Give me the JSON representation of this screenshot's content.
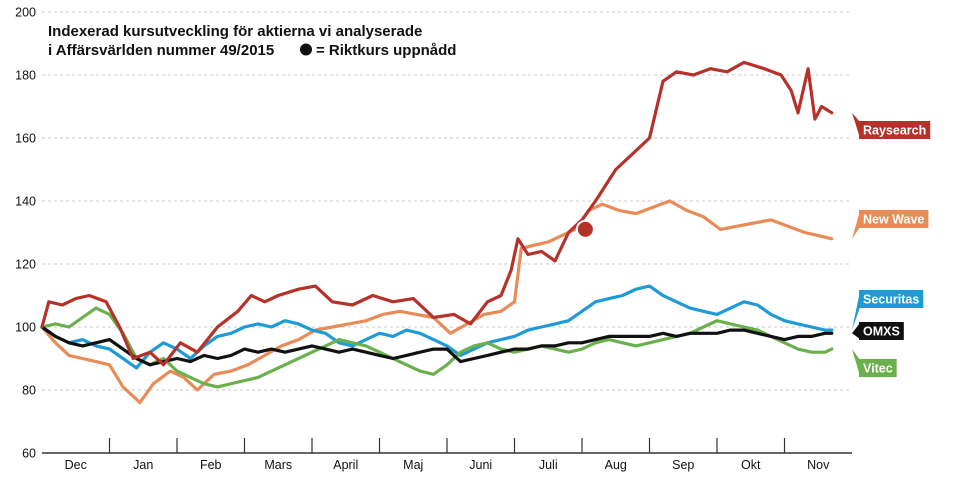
{
  "chart_data": {
    "type": "line",
    "title_lines": [
      "Indexerad kursutveckling för aktierna vi analyserade",
      "i Affärsvärlden nummer 49/2015"
    ],
    "legend_note": "= Riktkurs uppnådd",
    "ylim": [
      60,
      200
    ],
    "y_ticks": [
      60,
      80,
      100,
      120,
      140,
      160,
      180,
      200
    ],
    "grid": "horizontal-dashed",
    "months": [
      "Dec",
      "Jan",
      "Feb",
      "Mars",
      "April",
      "Maj",
      "Juni",
      "Juli",
      "Aug",
      "Sep",
      "Okt",
      "Nov"
    ],
    "x_range": [
      0,
      12
    ],
    "series": [
      {
        "name": "Raysearch",
        "color": "#b5322b",
        "x": [
          0,
          0.1,
          0.3,
          0.5,
          0.7,
          0.95,
          1.15,
          1.35,
          1.6,
          1.8,
          2.05,
          2.3,
          2.6,
          2.9,
          3.1,
          3.3,
          3.5,
          3.8,
          4.05,
          4.3,
          4.6,
          4.9,
          5.2,
          5.5,
          5.8,
          6.1,
          6.35,
          6.6,
          6.8,
          6.95,
          7.05,
          7.2,
          7.4,
          7.6,
          7.8,
          8.0,
          8.2,
          8.5,
          8.75,
          9.0,
          9.2,
          9.4,
          9.65,
          9.9,
          10.15,
          10.4,
          10.7,
          10.95,
          11.1,
          11.2,
          11.35,
          11.45,
          11.55,
          11.7
        ],
        "values": [
          100,
          108,
          107,
          109,
          110,
          108,
          100,
          90,
          92,
          88,
          95,
          92,
          100,
          105,
          110,
          108,
          110,
          112,
          113,
          108,
          107,
          110,
          108,
          109,
          103,
          104,
          101,
          108,
          110,
          118,
          128,
          123,
          124,
          121,
          130,
          134,
          140,
          150,
          155,
          160,
          178,
          181,
          180,
          182,
          181,
          184,
          182,
          180,
          175,
          168,
          182,
          166,
          170,
          168
        ]
      },
      {
        "name": "New Wave",
        "color": "#e88b57",
        "x": [
          0,
          0.2,
          0.4,
          0.6,
          0.8,
          1.0,
          1.2,
          1.45,
          1.65,
          1.9,
          2.1,
          2.3,
          2.55,
          2.8,
          3.05,
          3.3,
          3.55,
          3.8,
          4.05,
          4.3,
          4.55,
          4.8,
          5.05,
          5.3,
          5.55,
          5.8,
          6.05,
          6.3,
          6.55,
          6.8,
          7.0,
          7.1,
          7.3,
          7.5,
          7.7,
          7.9,
          8.1,
          8.3,
          8.55,
          8.8,
          9.05,
          9.3,
          9.55,
          9.8,
          10.05,
          10.3,
          10.55,
          10.8,
          11.05,
          11.3,
          11.5,
          11.7
        ],
        "values": [
          100,
          95,
          91,
          90,
          89,
          88,
          81,
          76,
          82,
          86,
          84,
          80,
          85,
          86,
          88,
          91,
          94,
          96,
          99,
          100,
          101,
          102,
          104,
          105,
          104,
          103,
          98,
          101,
          104,
          105,
          108,
          125,
          126,
          127,
          129,
          131,
          137,
          139,
          137,
          136,
          138,
          140,
          137,
          135,
          131,
          132,
          133,
          134,
          132,
          130,
          129,
          128
        ]
      },
      {
        "name": "Securitas",
        "color": "#1e9ad6",
        "x": [
          0,
          0.2,
          0.4,
          0.6,
          0.8,
          1.0,
          1.2,
          1.4,
          1.6,
          1.8,
          2.0,
          2.2,
          2.4,
          2.6,
          2.8,
          3.0,
          3.2,
          3.4,
          3.6,
          3.8,
          4.0,
          4.2,
          4.4,
          4.6,
          4.8,
          5.0,
          5.2,
          5.4,
          5.6,
          5.8,
          6.0,
          6.2,
          6.4,
          6.6,
          6.8,
          7.0,
          7.2,
          7.4,
          7.6,
          7.8,
          8.0,
          8.2,
          8.4,
          8.6,
          8.8,
          9.0,
          9.2,
          9.4,
          9.6,
          9.8,
          10.0,
          10.2,
          10.4,
          10.6,
          10.8,
          11.0,
          11.2,
          11.4,
          11.6,
          11.7
        ],
        "values": [
          100,
          97,
          95,
          96,
          94,
          93,
          90,
          87,
          92,
          95,
          93,
          90,
          94,
          97,
          98,
          100,
          101,
          100,
          102,
          101,
          99,
          98,
          95,
          94,
          96,
          98,
          97,
          99,
          98,
          96,
          94,
          91,
          93,
          95,
          96,
          97,
          99,
          100,
          101,
          102,
          105,
          108,
          109,
          110,
          112,
          113,
          110,
          108,
          106,
          105,
          104,
          106,
          108,
          107,
          104,
          102,
          101,
          100,
          99,
          99
        ]
      },
      {
        "name": "OMXS",
        "color": "#111111",
        "x": [
          0,
          0.2,
          0.4,
          0.6,
          0.8,
          1.0,
          1.2,
          1.4,
          1.6,
          1.8,
          2.0,
          2.2,
          2.4,
          2.6,
          2.8,
          3.0,
          3.2,
          3.4,
          3.6,
          3.8,
          4.0,
          4.2,
          4.4,
          4.6,
          4.8,
          5.0,
          5.2,
          5.4,
          5.6,
          5.8,
          6.0,
          6.2,
          6.4,
          6.6,
          6.8,
          7.0,
          7.2,
          7.4,
          7.6,
          7.8,
          8.0,
          8.2,
          8.4,
          8.6,
          8.8,
          9.0,
          9.2,
          9.4,
          9.6,
          9.8,
          10.0,
          10.2,
          10.4,
          10.6,
          10.8,
          11.0,
          11.2,
          11.4,
          11.6,
          11.7
        ],
        "values": [
          100,
          97,
          95,
          94,
          95,
          96,
          93,
          90,
          88,
          89,
          90,
          89,
          91,
          90,
          91,
          93,
          92,
          93,
          92,
          93,
          94,
          93,
          92,
          93,
          92,
          91,
          90,
          91,
          92,
          93,
          93,
          89,
          90,
          91,
          92,
          93,
          93,
          94,
          94,
          95,
          95,
          96,
          97,
          97,
          97,
          97,
          98,
          97,
          98,
          98,
          98,
          99,
          99,
          98,
          97,
          96,
          97,
          97,
          98,
          98
        ]
      },
      {
        "name": "Vitec",
        "color": "#6ab04c",
        "x": [
          0,
          0.2,
          0.4,
          0.6,
          0.8,
          1.0,
          1.2,
          1.4,
          1.6,
          1.8,
          2.0,
          2.2,
          2.4,
          2.6,
          2.8,
          3.0,
          3.2,
          3.4,
          3.6,
          3.8,
          4.0,
          4.2,
          4.4,
          4.6,
          4.8,
          5.0,
          5.2,
          5.4,
          5.6,
          5.8,
          6.0,
          6.2,
          6.4,
          6.6,
          6.8,
          7.0,
          7.2,
          7.4,
          7.6,
          7.8,
          8.0,
          8.2,
          8.4,
          8.6,
          8.8,
          9.0,
          9.2,
          9.4,
          9.6,
          9.8,
          10.0,
          10.2,
          10.4,
          10.6,
          10.8,
          11.0,
          11.2,
          11.4,
          11.6,
          11.7
        ],
        "values": [
          100,
          101,
          100,
          103,
          106,
          104,
          98,
          90,
          88,
          90,
          86,
          84,
          82,
          81,
          82,
          83,
          84,
          86,
          88,
          90,
          92,
          94,
          96,
          95,
          94,
          92,
          90,
          88,
          86,
          85,
          88,
          92,
          94,
          95,
          93,
          92,
          93,
          94,
          93,
          92,
          93,
          95,
          96,
          95,
          94,
          95,
          96,
          97,
          98,
          100,
          102,
          101,
          100,
          99,
          97,
          95,
          93,
          92,
          92,
          93
        ]
      }
    ],
    "highlight_point": {
      "series": "Raysearch",
      "x": 8.05,
      "y": 131
    }
  }
}
